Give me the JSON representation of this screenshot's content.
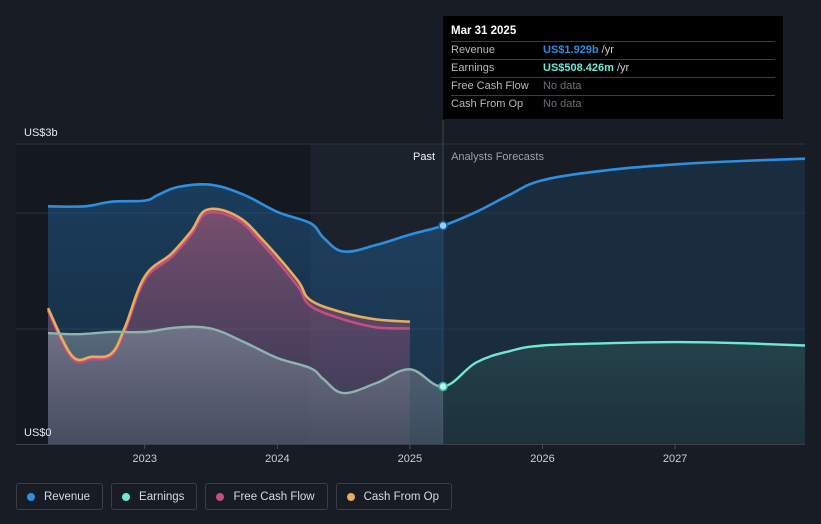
{
  "chart_data": {
    "type": "area",
    "y_axis": {
      "top_label": "US$3b",
      "bottom_label": "US$0",
      "ylim": [
        0,
        2.65
      ]
    },
    "x_axis": {
      "ticks": [
        "2023",
        "2024",
        "2025",
        "2026",
        "2027"
      ],
      "xlim": [
        2022.27,
        2027.98
      ]
    },
    "past_label": "Past",
    "forecast_label": "Analysts Forecasts",
    "forecast_start": 2025.25,
    "series": [
      {
        "name": "Revenue",
        "color": "#2e8ee0",
        "points": [
          [
            2022.27,
            2.1
          ],
          [
            2022.55,
            2.1
          ],
          [
            2022.75,
            2.14
          ],
          [
            2023.0,
            2.15
          ],
          [
            2023.1,
            2.2
          ],
          [
            2023.25,
            2.27
          ],
          [
            2023.5,
            2.29
          ],
          [
            2023.75,
            2.2
          ],
          [
            2024.0,
            2.05
          ],
          [
            2024.25,
            1.95
          ],
          [
            2024.35,
            1.82
          ],
          [
            2024.5,
            1.7
          ],
          [
            2024.75,
            1.76
          ],
          [
            2025.0,
            1.85
          ],
          [
            2025.25,
            1.929
          ],
          [
            2025.5,
            2.05
          ],
          [
            2025.75,
            2.2
          ],
          [
            2026.0,
            2.33
          ],
          [
            2026.5,
            2.42
          ],
          [
            2027.0,
            2.47
          ],
          [
            2027.5,
            2.5
          ],
          [
            2027.98,
            2.52
          ]
        ]
      },
      {
        "name": "Earnings",
        "color": "#72e7d3",
        "points": [
          [
            2022.27,
            0.98
          ],
          [
            2022.5,
            0.97
          ],
          [
            2022.75,
            0.99
          ],
          [
            2023.0,
            0.99
          ],
          [
            2023.25,
            1.03
          ],
          [
            2023.5,
            1.02
          ],
          [
            2023.75,
            0.9
          ],
          [
            2024.0,
            0.76
          ],
          [
            2024.25,
            0.67
          ],
          [
            2024.35,
            0.57
          ],
          [
            2024.5,
            0.45
          ],
          [
            2024.75,
            0.54
          ],
          [
            2025.0,
            0.66
          ],
          [
            2025.25,
            0.508
          ],
          [
            2025.5,
            0.72
          ],
          [
            2025.75,
            0.82
          ],
          [
            2026.0,
            0.87
          ],
          [
            2026.5,
            0.89
          ],
          [
            2027.0,
            0.9
          ],
          [
            2027.5,
            0.89
          ],
          [
            2027.98,
            0.87
          ]
        ]
      },
      {
        "name": "Free Cash Flow",
        "color": "#c44d82",
        "points": [
          [
            2022.27,
            1.18
          ],
          [
            2022.45,
            0.76
          ],
          [
            2022.6,
            0.75
          ],
          [
            2022.75,
            0.78
          ],
          [
            2022.85,
            1.0
          ],
          [
            2023.0,
            1.45
          ],
          [
            2023.2,
            1.65
          ],
          [
            2023.35,
            1.85
          ],
          [
            2023.47,
            2.04
          ],
          [
            2023.7,
            1.98
          ],
          [
            2023.9,
            1.75
          ],
          [
            2024.15,
            1.4
          ],
          [
            2024.25,
            1.22
          ],
          [
            2024.5,
            1.1
          ],
          [
            2024.75,
            1.03
          ],
          [
            2025.0,
            1.02
          ]
        ]
      },
      {
        "name": "Cash From Op",
        "color": "#e8ad5a",
        "points": [
          [
            2022.27,
            1.2
          ],
          [
            2022.45,
            0.78
          ],
          [
            2022.6,
            0.77
          ],
          [
            2022.75,
            0.8
          ],
          [
            2022.85,
            1.03
          ],
          [
            2023.0,
            1.48
          ],
          [
            2023.2,
            1.68
          ],
          [
            2023.35,
            1.88
          ],
          [
            2023.47,
            2.07
          ],
          [
            2023.7,
            2.01
          ],
          [
            2023.9,
            1.79
          ],
          [
            2024.15,
            1.45
          ],
          [
            2024.25,
            1.27
          ],
          [
            2024.5,
            1.16
          ],
          [
            2024.75,
            1.1
          ],
          [
            2025.0,
            1.08
          ]
        ]
      }
    ]
  },
  "tooltip": {
    "date": "Mar 31 2025",
    "rows": [
      {
        "label": "Revenue",
        "value": "US$1.929b",
        "unit": "/yr",
        "color": "#2e8ee0"
      },
      {
        "label": "Earnings",
        "value": "US$508.426m",
        "unit": "/yr",
        "color": "#72e7d3"
      },
      {
        "label": "Free Cash Flow",
        "value": "No data",
        "unit": "",
        "color": "#6b7079"
      },
      {
        "label": "Cash From Op",
        "value": "No data",
        "unit": "",
        "color": "#6b7079"
      }
    ]
  },
  "legend": [
    {
      "label": "Revenue",
      "color": "#2e8ee0"
    },
    {
      "label": "Earnings",
      "color": "#72e7d3"
    },
    {
      "label": "Free Cash Flow",
      "color": "#c44d82"
    },
    {
      "label": "Cash From Op",
      "color": "#e8ad5a"
    }
  ]
}
